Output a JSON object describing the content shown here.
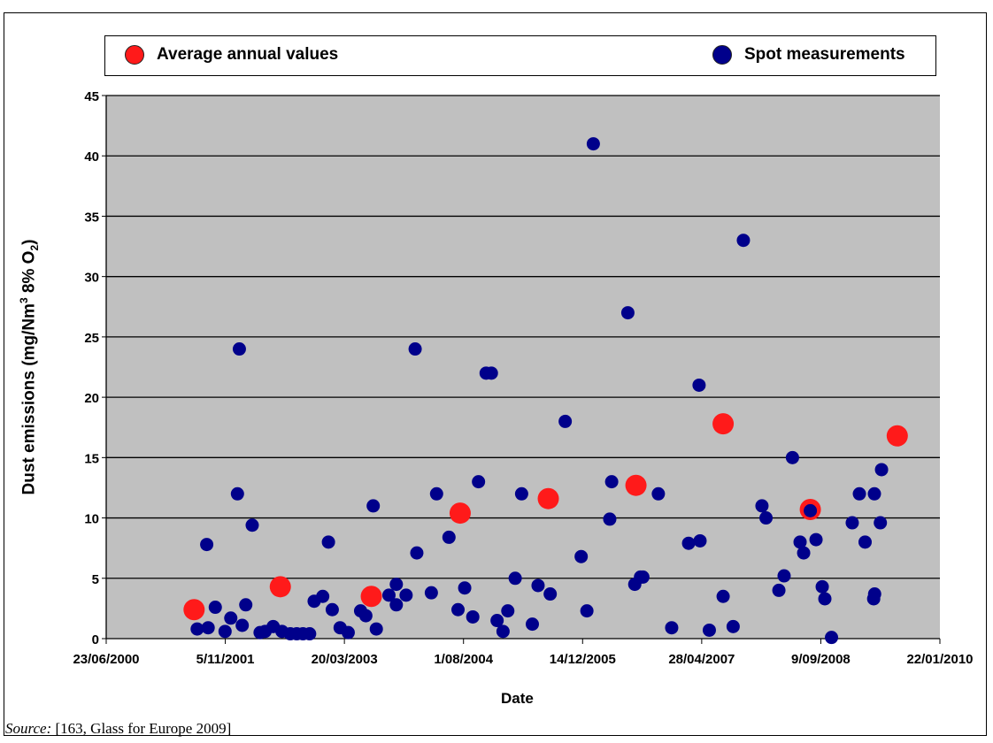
{
  "chart_data": {
    "type": "scatter",
    "xlabel": "Date",
    "ylabel_prefix": "Dust emissions (mg/Nm",
    "ylabel_sup": "3",
    "ylabel_mid": " 8% O",
    "ylabel_sub": "2",
    "ylabel_suffix": ")",
    "ylim": [
      0,
      45
    ],
    "yticks": [
      "0",
      "5",
      "10",
      "15",
      "20",
      "25",
      "30",
      "35",
      "40",
      "45"
    ],
    "xlim": [
      "2000-06-23",
      "2010-01-22"
    ],
    "xticks": [
      "23/06/2000",
      "5/11/2001",
      "20/03/2003",
      "1/08/2004",
      "14/12/2005",
      "28/04/2007",
      "9/09/2008",
      "22/01/2010"
    ],
    "grid": true,
    "legend_position": "top",
    "series": [
      {
        "name": "Average annual values",
        "color": "#ff1a1a",
        "points": [
          [
            "2001-06-27",
            2.4
          ],
          [
            "2002-06-24",
            4.3
          ],
          [
            "2003-07-11",
            3.5
          ],
          [
            "2004-07-18",
            10.4
          ],
          [
            "2005-07-23",
            11.6
          ],
          [
            "2006-07-26",
            12.7
          ],
          [
            "2007-07-27",
            17.8
          ],
          [
            "2008-07-27",
            10.7
          ],
          [
            "2009-07-27",
            16.8
          ]
        ]
      },
      {
        "name": "Spot measurements",
        "color": "#00008b",
        "points": [
          [
            "2001-07-10",
            0.8
          ],
          [
            "2001-08-19",
            7.8
          ],
          [
            "2001-08-25",
            0.9
          ],
          [
            "2001-09-24",
            2.6
          ],
          [
            "2001-11-04",
            0.6
          ],
          [
            "2001-11-28",
            1.7
          ],
          [
            "2001-12-26",
            12.0
          ],
          [
            "2002-01-03",
            24.0
          ],
          [
            "2002-01-15",
            1.1
          ],
          [
            "2002-01-30",
            2.8
          ],
          [
            "2002-02-26",
            9.4
          ],
          [
            "2002-03-31",
            0.5
          ],
          [
            "2002-04-21",
            0.6
          ],
          [
            "2002-05-25",
            1.0
          ],
          [
            "2002-07-01",
            0.6
          ],
          [
            "2002-08-05",
            0.4
          ],
          [
            "2002-09-01",
            0.4
          ],
          [
            "2002-09-27",
            0.4
          ],
          [
            "2002-10-25",
            0.4
          ],
          [
            "2002-11-13",
            3.1
          ],
          [
            "2002-12-19",
            3.5
          ],
          [
            "2003-01-12",
            8.0
          ],
          [
            "2003-01-28",
            2.4
          ],
          [
            "2003-03-02",
            0.9
          ],
          [
            "2003-04-05",
            0.5
          ],
          [
            "2003-05-27",
            2.3
          ],
          [
            "2003-06-18",
            1.9
          ],
          [
            "2003-07-19",
            11.0
          ],
          [
            "2003-08-01",
            0.8
          ],
          [
            "2003-09-23",
            3.6
          ],
          [
            "2003-10-24",
            4.5
          ],
          [
            "2003-10-24",
            2.8
          ],
          [
            "2003-12-04",
            3.6
          ],
          [
            "2004-01-11",
            24.0
          ],
          [
            "2004-01-18",
            7.1
          ],
          [
            "2004-03-19",
            3.8
          ],
          [
            "2004-04-10",
            12.0
          ],
          [
            "2004-06-01",
            8.4
          ],
          [
            "2004-07-09",
            2.4
          ],
          [
            "2004-08-06",
            4.2
          ],
          [
            "2004-09-09",
            1.8
          ],
          [
            "2004-10-03",
            13.0
          ],
          [
            "2004-11-04",
            22.0
          ],
          [
            "2004-11-26",
            22.0
          ],
          [
            "2004-12-20",
            1.5
          ],
          [
            "2005-01-14",
            0.6
          ],
          [
            "2005-02-03",
            2.3
          ],
          [
            "2005-03-06",
            5.0
          ],
          [
            "2005-04-02",
            12.0
          ],
          [
            "2005-05-17",
            1.2
          ],
          [
            "2005-06-10",
            4.4
          ],
          [
            "2005-07-31",
            3.7
          ],
          [
            "2005-10-02",
            18.0
          ],
          [
            "2005-12-08",
            6.8
          ],
          [
            "2006-01-01",
            2.3
          ],
          [
            "2006-01-28",
            41.0
          ],
          [
            "2006-04-07",
            9.9
          ],
          [
            "2006-04-15",
            13.0
          ],
          [
            "2006-06-22",
            27.0
          ],
          [
            "2006-07-21",
            4.5
          ],
          [
            "2006-08-14",
            5.1
          ],
          [
            "2006-08-24",
            5.1
          ],
          [
            "2006-10-28",
            12.0
          ],
          [
            "2006-12-23",
            0.9
          ],
          [
            "2007-03-04",
            7.9
          ],
          [
            "2007-04-17",
            21.0
          ],
          [
            "2007-04-21",
            8.1
          ],
          [
            "2007-05-30",
            0.7
          ],
          [
            "2007-07-27",
            3.5
          ],
          [
            "2007-09-07",
            1.0
          ],
          [
            "2007-10-20",
            33.0
          ],
          [
            "2008-01-06",
            11.0
          ],
          [
            "2008-01-23",
            10.0
          ],
          [
            "2008-03-17",
            4.0
          ],
          [
            "2008-04-08",
            5.2
          ],
          [
            "2008-05-13",
            15.0
          ],
          [
            "2008-06-14",
            8.0
          ],
          [
            "2008-06-29",
            7.1
          ],
          [
            "2008-07-27",
            10.6
          ],
          [
            "2008-08-20",
            8.2
          ],
          [
            "2008-09-15",
            4.3
          ],
          [
            "2008-09-26",
            3.3
          ],
          [
            "2008-10-24",
            0.1
          ],
          [
            "2009-01-19",
            9.6
          ],
          [
            "2009-02-18",
            12.0
          ],
          [
            "2009-03-14",
            8.0
          ],
          [
            "2009-04-22",
            12.0
          ],
          [
            "2009-04-19",
            3.3
          ],
          [
            "2009-04-23",
            3.7
          ],
          [
            "2009-05-22",
            14.0
          ],
          [
            "2009-05-17",
            9.6
          ]
        ]
      }
    ]
  },
  "source": {
    "label": "Source:",
    "text": " [163, Glass for Europe 2009]"
  }
}
